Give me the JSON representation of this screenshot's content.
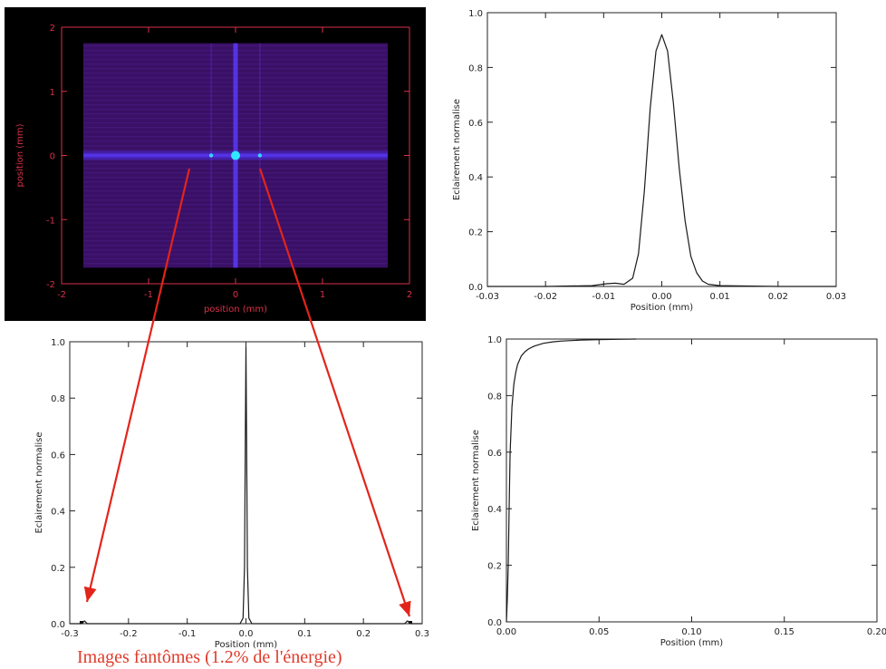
{
  "colors": {
    "image_background": "#000000",
    "image_field": "#3a1066",
    "image_streak": "#4a2ad8",
    "image_axis": "#d8304a",
    "arrow": "#e3241a",
    "caption": "#e03a2a",
    "plot_line": "#1a1a1a",
    "bright_spot": "#33e6ff"
  },
  "caption": "Images fantômes (1.2% de l'énergie)",
  "chart_data": [
    {
      "type": "heatmap",
      "title": "",
      "xlabel": "position (mm)",
      "ylabel": "position (mm)",
      "xlim": [
        -2,
        2
      ],
      "ylim": [
        -2,
        2
      ],
      "xticks": [
        "-2",
        "-1",
        "0",
        "1",
        "2"
      ],
      "yticks": [
        "-2",
        "-1",
        "0",
        "1",
        "2"
      ],
      "field_extent": {
        "x": [
          -1.75,
          1.75
        ],
        "y": [
          -1.75,
          1.75
        ]
      },
      "features": [
        {
          "label": "central peak",
          "x": 0,
          "y": 0
        },
        {
          "label": "ghost image",
          "x": -0.28,
          "y": 0
        },
        {
          "label": "ghost image",
          "x": 0.28,
          "y": 0
        }
      ],
      "background": "black",
      "colormap": "purple-blue"
    },
    {
      "type": "line",
      "title": "",
      "xlabel": "Position (mm)",
      "ylabel": "Eclairement normalise",
      "xlim": [
        -0.03,
        0.03
      ],
      "ylim": [
        0,
        1
      ],
      "xticks": [
        "-0.03",
        "-0.02",
        "-0.01",
        "0.00",
        "0.01",
        "0.02",
        "0.03"
      ],
      "yticks": [
        "0.0",
        "0.2",
        "0.4",
        "0.6",
        "0.8",
        "1.0"
      ],
      "x": [
        -0.03,
        -0.02,
        -0.012,
        -0.0095,
        -0.008,
        -0.0065,
        -0.005,
        -0.004,
        -0.003,
        -0.002,
        -0.001,
        0.0,
        0.001,
        0.002,
        0.003,
        0.004,
        0.005,
        0.006,
        0.007,
        0.008,
        0.01,
        0.02,
        0.03
      ],
      "y": [
        0.0,
        0.0,
        0.003,
        0.01,
        0.012,
        0.008,
        0.03,
        0.12,
        0.35,
        0.65,
        0.86,
        0.92,
        0.86,
        0.67,
        0.43,
        0.24,
        0.11,
        0.05,
        0.02,
        0.008,
        0.003,
        0.0,
        0.0
      ]
    },
    {
      "type": "line",
      "title": "",
      "xlabel": "Position (mm)",
      "ylabel": "Eclairement normalise",
      "xlim": [
        -0.3,
        0.3
      ],
      "ylim": [
        0,
        1
      ],
      "xticks": [
        "-0.3",
        "-0.2",
        "-0.1",
        "0.0",
        "0.1",
        "0.2",
        "0.3"
      ],
      "yticks": [
        "0.0",
        "0.2",
        "0.4",
        "0.6",
        "0.8",
        "1.0"
      ],
      "x": [
        -0.3,
        -0.28,
        -0.275,
        -0.27,
        -0.01,
        -0.005,
        -0.0025,
        -0.001,
        0.0,
        0.001,
        0.0025,
        0.005,
        0.01,
        0.27,
        0.275,
        0.28,
        0.3
      ],
      "y": [
        0.0,
        0.0,
        0.01,
        0.0,
        0.0,
        0.02,
        0.2,
        0.7,
        0.98,
        0.7,
        0.2,
        0.02,
        0.0,
        0.0,
        0.01,
        0.0,
        0.0
      ]
    },
    {
      "type": "line",
      "title": "",
      "xlabel": "Position (mm)",
      "ylabel": "Eclairement normalise",
      "xlim": [
        0,
        0.2
      ],
      "ylim": [
        0,
        1
      ],
      "xticks": [
        "0.00",
        "0.05",
        "0.10",
        "0.15",
        "0.20"
      ],
      "yticks": [
        "0.0",
        "0.2",
        "0.4",
        "0.6",
        "0.8",
        "1.0"
      ],
      "x": [
        0.0,
        0.0005,
        0.001,
        0.0015,
        0.002,
        0.003,
        0.004,
        0.005,
        0.006,
        0.008,
        0.01,
        0.012,
        0.015,
        0.02,
        0.025,
        0.03,
        0.04,
        0.05,
        0.06,
        0.07
      ],
      "y": [
        0.0,
        0.08,
        0.2,
        0.42,
        0.6,
        0.76,
        0.84,
        0.88,
        0.91,
        0.94,
        0.955,
        0.965,
        0.975,
        0.985,
        0.99,
        0.993,
        0.996,
        0.998,
        0.999,
        1.0
      ]
    }
  ]
}
